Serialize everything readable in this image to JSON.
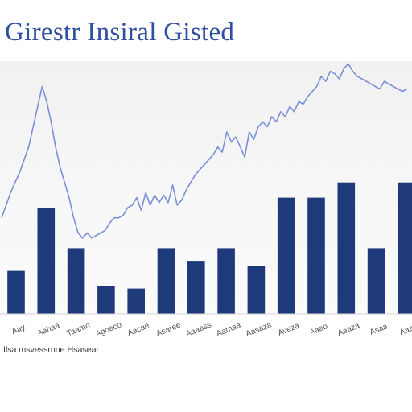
{
  "chart_data": {
    "type": "bar",
    "title": "Girestr Insiral Gisted",
    "note": "Combined bar and line chart; axes unlabeled",
    "xlabel": "",
    "ylabel": "",
    "ylim": [
      0,
      100
    ],
    "grid": false,
    "legend": "none",
    "footnote": "Ilsa msvessrnne Hsasear",
    "categories": [
      "Aay",
      "Aahaa",
      "Taamo",
      "Agoaco",
      "Aacae",
      "Asaree",
      "Aaaass",
      "Aamaa",
      "Aasaza",
      "Aveza",
      "Aaao",
      "Aaaza",
      "Asaa",
      "Aaaa"
    ],
    "series": [
      {
        "type": "bar",
        "color": "#1f3a7a",
        "values": [
          17,
          42,
          26,
          11,
          10,
          26,
          21,
          26,
          19,
          46,
          46,
          52,
          26,
          52
        ]
      },
      {
        "type": "line",
        "color": "#7b8fd6",
        "x": [
          0,
          0.3,
          0.6,
          0.9,
          1.2,
          1.35,
          1.5,
          1.65,
          1.8,
          1.95,
          2.1,
          2.25,
          2.4,
          2.55,
          2.7,
          2.85,
          3.0,
          3.15,
          3.3,
          3.45,
          3.6,
          3.75,
          3.9,
          4.05,
          4.2,
          4.35,
          4.5,
          4.65,
          4.8,
          4.95,
          5.1,
          5.25,
          5.4,
          5.55,
          5.7,
          5.85,
          6.0,
          6.15,
          6.3,
          6.45,
          6.6,
          6.75,
          6.9,
          7.05,
          7.2,
          7.35,
          7.5,
          7.65,
          7.8,
          7.95,
          8.1,
          8.25,
          8.4,
          8.55,
          8.7,
          8.85,
          9.0,
          9.15,
          9.3,
          9.45,
          9.6,
          9.75,
          9.9,
          10.05,
          10.2,
          10.35,
          10.5,
          10.65,
          10.8,
          10.95,
          11.1,
          11.25,
          11.4,
          11.55,
          11.7,
          11.85,
          12.0,
          12.15,
          12.3,
          12.45,
          12.6,
          12.75,
          12.9,
          13.05,
          13.2,
          13.35,
          13.5
        ],
        "values": [
          38,
          48,
          56,
          66,
          82,
          90,
          84,
          76,
          66,
          58,
          52,
          46,
          38,
          32,
          30,
          32,
          30,
          31,
          32,
          33,
          36,
          38,
          38,
          39,
          42,
          43,
          46,
          41,
          48,
          43,
          47,
          44,
          47,
          44,
          51,
          43,
          45,
          49,
          52,
          55,
          57,
          59,
          61,
          63,
          66,
          64,
          72,
          68,
          70,
          66,
          62,
          72,
          69,
          74,
          76,
          74,
          78,
          76,
          80,
          78,
          82,
          80,
          84,
          83,
          86,
          88,
          90,
          94,
          92,
          96,
          95,
          93,
          97,
          99,
          96,
          94,
          93,
          92,
          91,
          90,
          89,
          92,
          91,
          90,
          89,
          88,
          89
        ]
      }
    ]
  }
}
